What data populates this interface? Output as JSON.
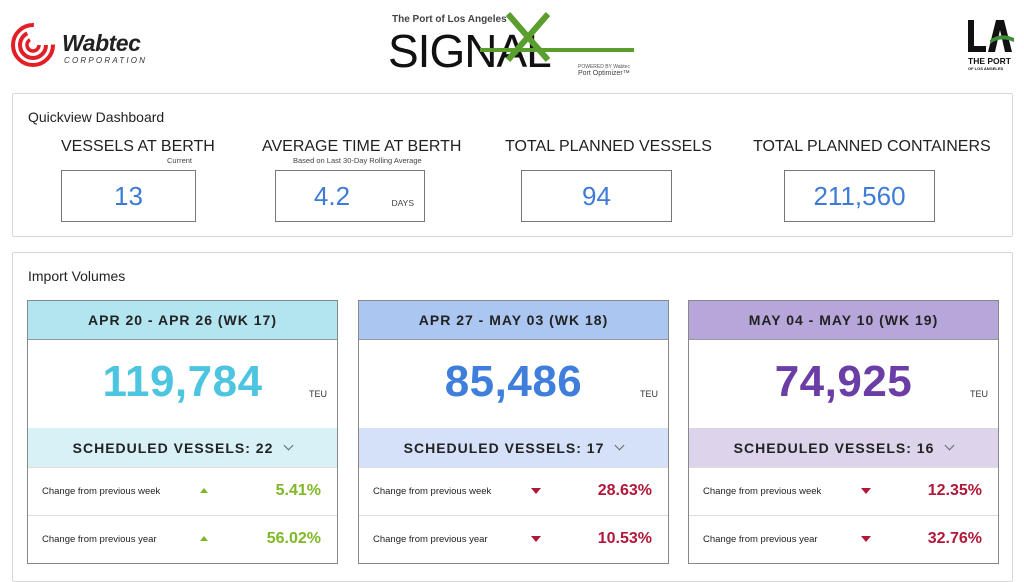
{
  "header": {
    "wabtec_name": "Wabtec",
    "wabtec_sub": "CORPORATION",
    "signal_top": "The Port of Los Angeles",
    "signal_word": "SIGNAL",
    "signal_powered": "POWERED BY Wabtec",
    "signal_product": "Port Optimizer™",
    "la_name": "THE PORT",
    "la_sub": "OF LOS ANGELES",
    "colors": {
      "wabtec_red": "#e11f26",
      "signal_green": "#5a9e2d"
    }
  },
  "quickview": {
    "title": "Quickview Dashboard",
    "stats": [
      {
        "label": "VESSELS AT BERTH",
        "sub": "Current",
        "value": "13",
        "unit": ""
      },
      {
        "label": "AVERAGE TIME AT BERTH",
        "sub": "Based on Last 30-Day Rolling Average",
        "value": "4.2",
        "unit": "DAYS"
      },
      {
        "label": "TOTAL PLANNED VESSELS",
        "sub": "",
        "value": "94",
        "unit": ""
      },
      {
        "label": "TOTAL PLANNED CONTAINERS",
        "sub": "",
        "value": "211,560",
        "unit": ""
      }
    ]
  },
  "imports": {
    "title": "Import Volumes",
    "cards": [
      {
        "week": "APR 20 - APR 26 (WK 17)",
        "volume": "119,784",
        "unit": "TEU",
        "scheduled": "SCHEDULED VESSELS: 22",
        "week_label": "Change from previous week",
        "week_change": "5.41%",
        "week_dir": "up",
        "year_label": "Change from previous year",
        "year_change": "56.02%",
        "year_dir": "up",
        "colors": {
          "head": "#b3e5f0",
          "sched": "#d7f1f7",
          "value": "#4ec5e0"
        }
      },
      {
        "week": "APR 27 - MAY 03 (WK 18)",
        "volume": "85,486",
        "unit": "TEU",
        "scheduled": "SCHEDULED VESSELS: 17",
        "week_label": "Change from previous week",
        "week_change": "28.63%",
        "week_dir": "down",
        "year_label": "Change from previous year",
        "year_change": "10.53%",
        "year_dir": "down",
        "colors": {
          "head": "#abc6f0",
          "sched": "#d4e1f8",
          "value": "#3f7fdb"
        }
      },
      {
        "week": "MAY 04 - MAY 10 (WK 19)",
        "volume": "74,925",
        "unit": "TEU",
        "scheduled": "SCHEDULED VESSELS: 16",
        "week_label": "Change from previous week",
        "week_change": "12.35%",
        "week_dir": "down",
        "year_label": "Change from previous year",
        "year_change": "32.76%",
        "year_dir": "down",
        "colors": {
          "head": "#b7a6d9",
          "sched": "#ddd4ec",
          "value": "#6a3ea6"
        }
      }
    ]
  }
}
